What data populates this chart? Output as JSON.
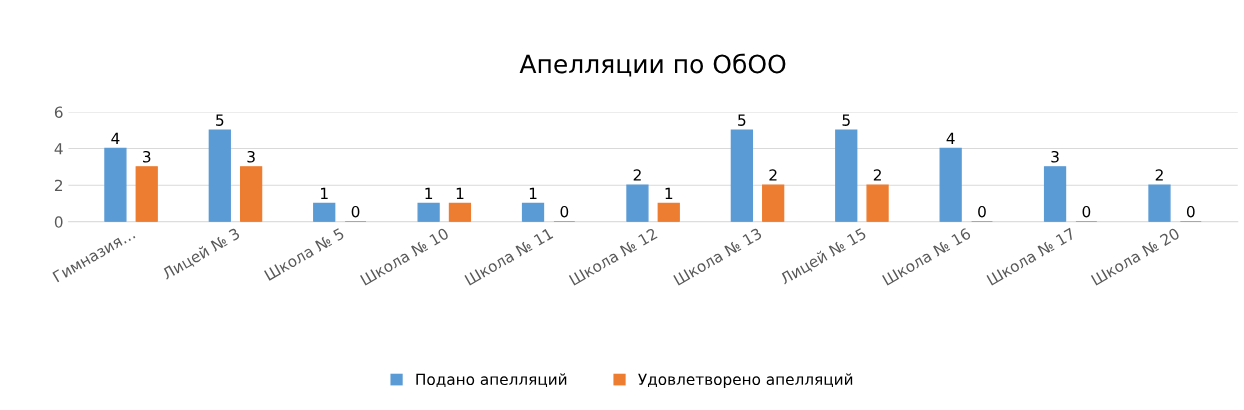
{
  "chart_data": {
    "type": "bar",
    "title": "Апелляции по ОбОО",
    "categories": [
      "Гимназия…",
      "Лицей № 3",
      "Школа № 5",
      "Школа № 10",
      "Школа № 11",
      "Школа № 12",
      "Школа № 13",
      "Лицей № 15",
      "Школа № 16",
      "Школа № 17",
      "Школа № 20"
    ],
    "series": [
      {
        "name": "Подано апелляций",
        "color": "#5b9bd5",
        "values": [
          4,
          5,
          1,
          1,
          1,
          2,
          5,
          5,
          4,
          3,
          2
        ]
      },
      {
        "name": "Удовлетворено апелляций",
        "color": "#ed7d31",
        "values": [
          3,
          3,
          0,
          1,
          0,
          1,
          2,
          2,
          0,
          0,
          0
        ]
      }
    ],
    "ylim": [
      0,
      6
    ],
    "yticks": [
      0,
      2,
      4,
      6
    ],
    "grid": "y",
    "legend": "bottom",
    "data_labels": true
  }
}
